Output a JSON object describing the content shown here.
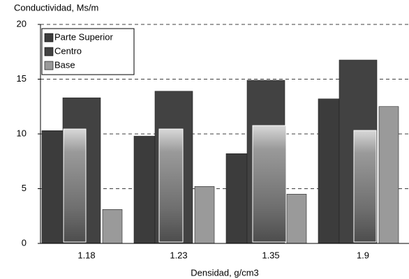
{
  "chart_data": {
    "type": "bar",
    "title": "Conductividad, Ms/m",
    "x_label": "Densidad, g/cm3",
    "categories": [
      "1.18",
      "1.23",
      "1.35",
      "1.9"
    ],
    "series": [
      {
        "name": "Parte Superior",
        "color": "#3c3c3c",
        "values": [
          10.3,
          9.8,
          8.2,
          13.2
        ]
      },
      {
        "name": "Centro",
        "color": "#424242",
        "values": [
          13.3,
          13.9,
          14.9,
          16.75
        ]
      },
      {
        "name": "Base",
        "color": "#9a9a9a",
        "values": [
          3.1,
          5.2,
          4.5,
          12.5
        ]
      }
    ],
    "ylim": [
      0,
      20
    ],
    "yticks": [
      0,
      5,
      10,
      15,
      20
    ],
    "grid": true,
    "legend": "upper left"
  }
}
